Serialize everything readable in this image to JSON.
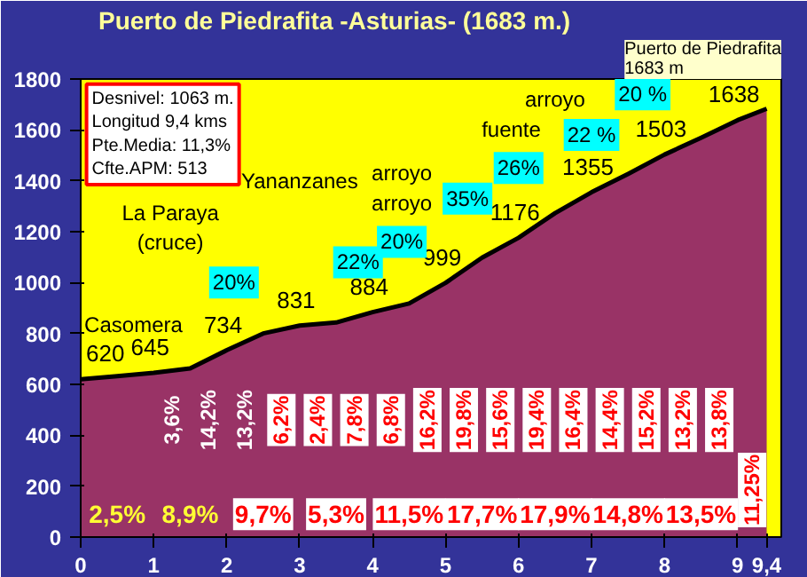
{
  "chart_data": {
    "type": "area",
    "title": "Puerto de Piedrafita -Asturias- (1683 m.)",
    "x": [
      0,
      0.5,
      1,
      1.5,
      2,
      2.5,
      3,
      3.5,
      4,
      4.5,
      5,
      5.5,
      6,
      6.5,
      7,
      7.5,
      8,
      8.5,
      9,
      9.4
    ],
    "series": [
      {
        "color": "#993366",
        "values": [
          620,
          632,
          645,
          663,
          734,
          800,
          831,
          843,
          884,
          918,
          999,
          1098,
          1176,
          1273,
          1355,
          1427,
          1503,
          1569,
          1638,
          1683
        ],
        "value_labels": [
          "620",
          null,
          "645",
          null,
          "734",
          null,
          "831",
          null,
          "884",
          null,
          "999",
          null,
          "1176",
          null,
          "1355",
          null,
          "1503",
          null,
          "1638",
          null
        ]
      }
    ],
    "xlim": [
      0,
      9.6
    ],
    "ylim": [
      0,
      1800
    ],
    "xticks": [
      0,
      1,
      2,
      3,
      4,
      5,
      6,
      7,
      8,
      9,
      {
        "value": 9.4,
        "label": "9,4"
      }
    ],
    "yticks": [
      0,
      200,
      400,
      600,
      800,
      1000,
      1200,
      1400,
      1600,
      1800
    ],
    "annotations": [
      "Desnivel: 1063 m.\nLongitud 9,4 kms\nPte.Media: 11,3%\nCfte.APM: 513",
      "Puerto de Piedrafita\n1683 m",
      "Casomera",
      "La Paraya\n(cruce)",
      "Yananzanes",
      "arroyo\narroyo",
      "fuente",
      "arroyo",
      "20%",
      "22%",
      "20%",
      "35%",
      "26%",
      "22 %",
      "20 %",
      "2,5%",
      "8,9%",
      "9,7%",
      "5,3%",
      "11,5%",
      "17,7%",
      "17,9%",
      "14,8%",
      "13,5%",
      "11,25%",
      "3,6%",
      "14,2%",
      "13,2%",
      "6,2%",
      "2,4%",
      "7,8%",
      "6,8%",
      "16,2%",
      "19,8%",
      "15,6%",
      "19,4%",
      "16,4%",
      "14,4%",
      "15,2%",
      "13,2%",
      "13,8%"
    ]
  }
}
